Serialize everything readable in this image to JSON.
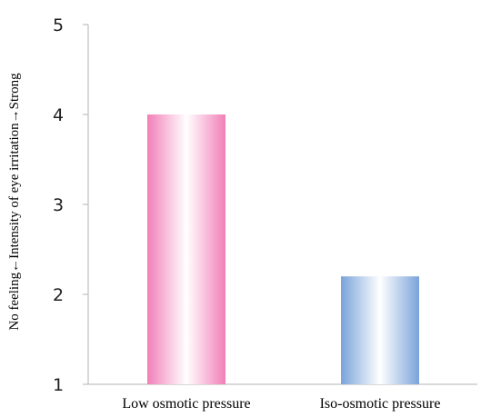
{
  "chart_data": {
    "type": "bar",
    "ylabel": "No feeling←Intensity of eye irritation→Strong",
    "xlabel": "",
    "ylim": [
      1,
      5
    ],
    "yticks": [
      "1",
      "2",
      "3",
      "4",
      "5"
    ],
    "grid": false,
    "categories": [
      "Low osmotic pressure",
      "Iso-osmotic pressure"
    ],
    "values": [
      4.0,
      2.2
    ],
    "colors": [
      "#f08cbf",
      "#7fa6dc"
    ]
  }
}
